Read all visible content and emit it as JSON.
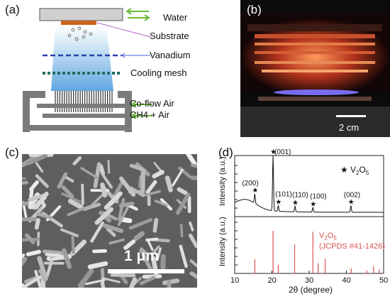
{
  "panels": {
    "a": {
      "label": "(a)",
      "labels": {
        "water": "Water",
        "substrate": "Substrate",
        "vanadium": "Vanadium",
        "cooling_mesh": "Cooling mesh",
        "coflow_air": "Co-flow Air",
        "ch4_air": "CH4 + Air"
      }
    },
    "b": {
      "label": "(b)",
      "scale_bar": "2 cm"
    },
    "c": {
      "label": "(c)",
      "scale_bar": "1 μm"
    },
    "d": {
      "label": "(d)",
      "legend_text": "V",
      "legend_sub": "2",
      "legend_text2": "O",
      "legend_sub2": "5",
      "upper_ylabel": "Intensity (a.u.)",
      "lower_ylabel": "Intensity (a.u.)",
      "xlabel": "2θ (degree)",
      "ref_label_main": "V",
      "ref_label_sub1": "2",
      "ref_label_mid": "O",
      "ref_label_sub2": "5",
      "ref_label_line2": "(JCPDS #41-1426)"
    }
  },
  "chart_data": {
    "type": "line",
    "xlabel": "2θ (degree)",
    "xlim": [
      10,
      50
    ],
    "x_ticks": [
      10,
      20,
      30,
      40,
      50
    ],
    "upper_pattern_peaks": [
      {
        "x": 15.4,
        "label": "(200)",
        "rel": 0.17
      },
      {
        "x": 20.3,
        "label": "(001)",
        "rel": 1.0
      },
      {
        "x": 21.7,
        "label": "(101)",
        "rel": 0.1
      },
      {
        "x": 26.2,
        "label": "(110)",
        "rel": 0.1
      },
      {
        "x": 31.0,
        "label": "(100)",
        "rel": 0.08
      },
      {
        "x": 41.2,
        "label": "(002)",
        "rel": 0.12
      }
    ],
    "reference_lines": [
      {
        "x": 15.4,
        "rel": 0.33
      },
      {
        "x": 20.3,
        "rel": 1.0
      },
      {
        "x": 21.7,
        "rel": 0.2
      },
      {
        "x": 26.1,
        "rel": 0.68
      },
      {
        "x": 31.0,
        "rel": 0.98
      },
      {
        "x": 32.4,
        "rel": 0.24
      },
      {
        "x": 34.3,
        "rel": 0.34
      },
      {
        "x": 41.3,
        "rel": 0.12
      },
      {
        "x": 45.5,
        "rel": 0.07
      },
      {
        "x": 47.3,
        "rel": 0.17
      },
      {
        "x": 48.8,
        "rel": 0.09
      }
    ],
    "colors": {
      "upper": "#111111",
      "reference": "#d9534f"
    }
  }
}
